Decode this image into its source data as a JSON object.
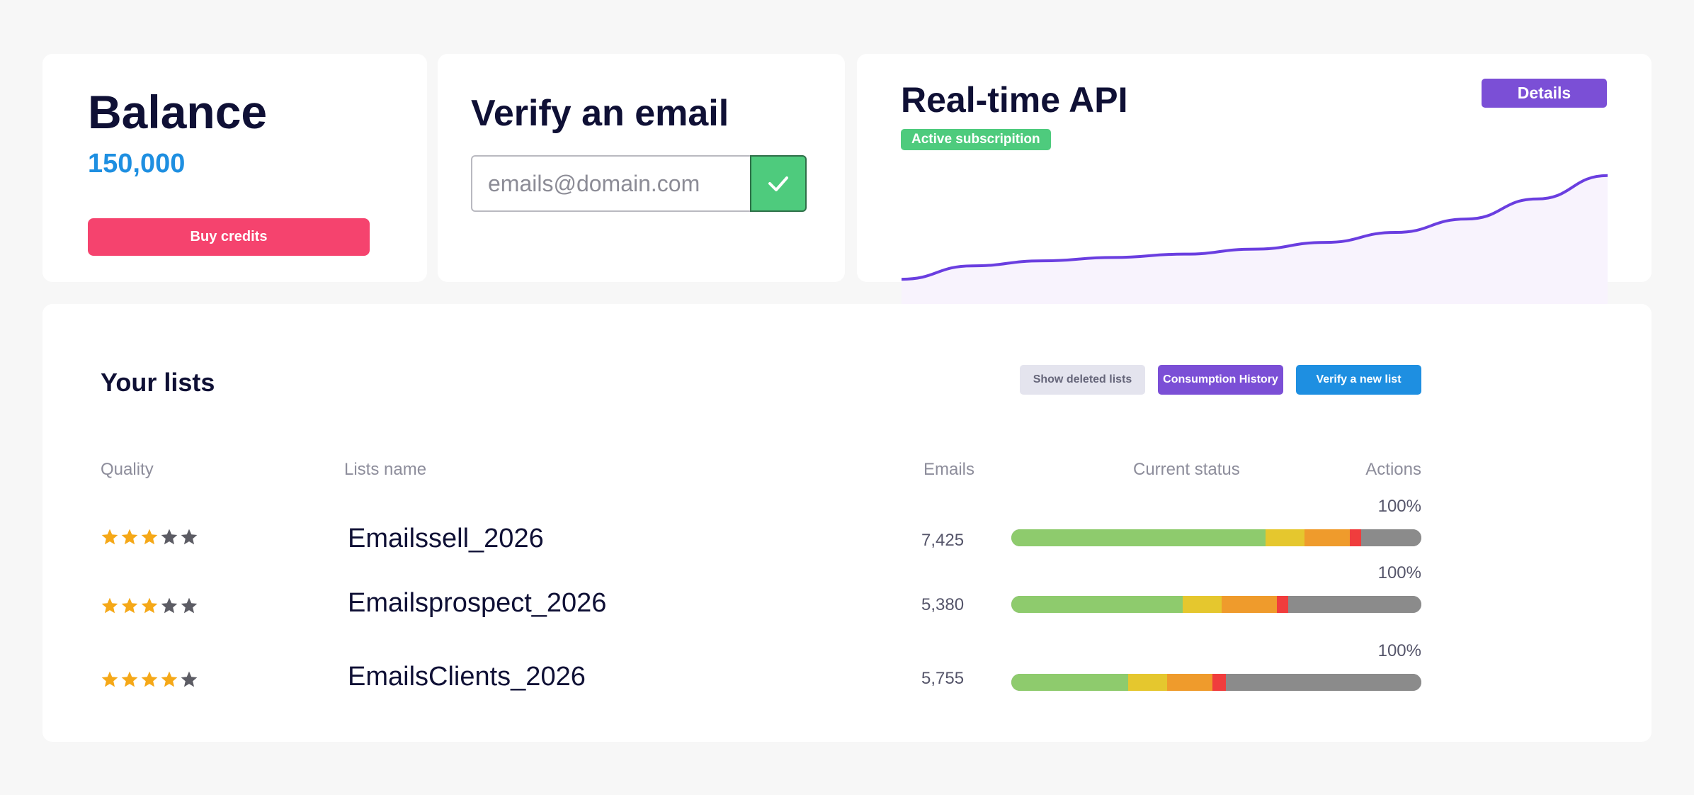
{
  "balance": {
    "title": "Balance",
    "amount": "150,000",
    "buy_label": "Buy credits"
  },
  "verify": {
    "title": "Verify an email",
    "placeholder": "emails@domain.com",
    "submit_icon": "check-icon"
  },
  "api": {
    "title": "Real-time API",
    "badge": "Active subscripition",
    "details_label": "Details",
    "chart_data": {
      "type": "area",
      "x": [
        0,
        1,
        2,
        3,
        4,
        5,
        6,
        7,
        8,
        9,
        10
      ],
      "y": [
        22,
        30,
        33,
        35,
        37,
        40,
        44,
        50,
        58,
        70,
        84
      ],
      "ylim": [
        0,
        100
      ],
      "color": "#6a3ee0"
    }
  },
  "lists": {
    "title": "Your lists",
    "buttons": {
      "show_deleted": "Show deleted lists",
      "consumption_history": "Consumption History",
      "verify_new": "Verify a new list"
    },
    "headers": {
      "quality": "Quality",
      "name": "Lists name",
      "emails": "Emails",
      "status": "Current status",
      "actions": "Actions"
    },
    "rows": [
      {
        "rating": 3,
        "name": "Emailssell_2026",
        "emails": "7,425",
        "percent": "100%",
        "status": {
          "valid": 0.62,
          "risky": 0.095,
          "unknown": 0.11,
          "invalid": 0.028
        }
      },
      {
        "rating": 3,
        "name": "Emailsprospect_2026",
        "emails": "5,380",
        "percent": "100%",
        "status": {
          "valid": 0.418,
          "risky": 0.095,
          "unknown": 0.135,
          "invalid": 0.028
        }
      },
      {
        "rating": 4,
        "name": "EmailsClients_2026",
        "emails": "5,755",
        "percent": "100%",
        "status": {
          "valid": 0.285,
          "risky": 0.095,
          "unknown": 0.11,
          "invalid": 0.033
        }
      }
    ],
    "colors": {
      "valid": "#8ecb6d",
      "risky": "#e5c72e",
      "unknown": "#ef9b2c",
      "invalid": "#f03d3d",
      "remaining": "#8b8b8b"
    },
    "star_colors": {
      "filled": "#f5a818",
      "empty": "#5c5c64"
    }
  }
}
